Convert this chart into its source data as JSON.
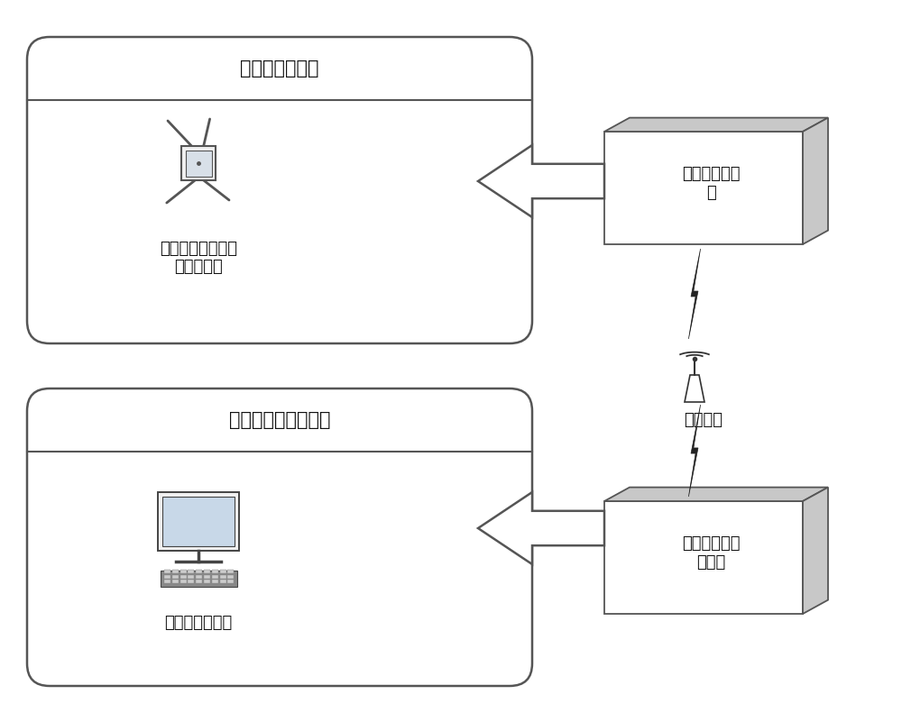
{
  "bg_color": "#ffffff",
  "box_bg": "#ffffff",
  "shade_color": "#d0d0d0",
  "edge_color": "#555555",
  "outer_box1_label": "可穿戴终端模块",
  "outer_box2_label": "云端处理服务器模块",
  "inner_box1_label": "内置惯性传感器的\n可穿戴终端",
  "inner_box2_label": "云端处理服务器",
  "right_box1_line1": "可穿戴终端模",
  "right_box1_line2": "块",
  "right_box2_line1": "云端处理服务",
  "right_box2_line2": "器模块",
  "comm_label": "通信设备",
  "font_size_title": 15,
  "font_size_body": 13,
  "font_size_small": 12
}
